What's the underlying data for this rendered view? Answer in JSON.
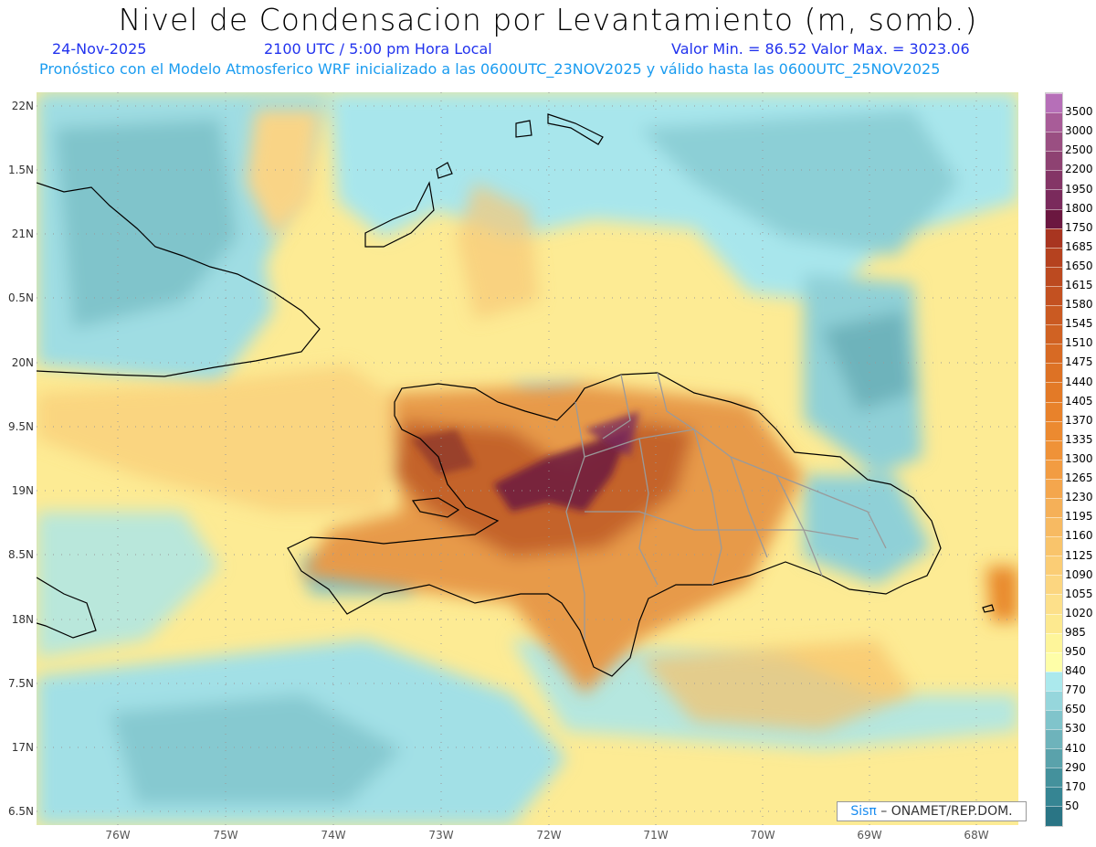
{
  "header": {
    "title": "Nivel de Condensacion por Levantamiento (m, somb.)",
    "date": "24-Nov-2025",
    "time": "2100 UTC / 5:00 pm Hora Local",
    "minmax": "Valor Min. = 86.52  Valor Max. = 3023.06",
    "forecast": "Pronóstico con el Modelo Atmosferico WRF inicializado a las 0600UTC_23NOV2025 y válido hasta las  0600UTC_25NOV2025"
  },
  "axes": {
    "lat_labels": [
      "22N",
      "1.5N",
      "21N",
      "0.5N",
      "20N",
      "9.5N",
      "19N",
      "8.5N",
      "18N",
      "7.5N",
      "17N",
      "6.5N"
    ],
    "lon_labels": [
      "76W",
      "75W",
      "74W",
      "73W",
      "72W",
      "71W",
      "70W",
      "69W",
      "68W"
    ]
  },
  "colorbar": {
    "labels": [
      "50",
      "170",
      "290",
      "410",
      "530",
      "650",
      "770",
      "840",
      "950",
      "985",
      "1020",
      "1055",
      "1090",
      "1125",
      "1160",
      "1195",
      "1230",
      "1265",
      "1300",
      "1335",
      "1370",
      "1405",
      "1440",
      "1475",
      "1510",
      "1545",
      "1580",
      "1615",
      "1650",
      "1685",
      "1750",
      "1800",
      "1950",
      "2200",
      "2500",
      "3000",
      "3500"
    ],
    "colors": [
      "#2a7585",
      "#368593",
      "#44919c",
      "#5aa2ab",
      "#6eb3bb",
      "#80c4cb",
      "#96d6dc",
      "#abe9ed",
      "#fefea8",
      "#fef59a",
      "#fde98f",
      "#fde08a",
      "#fcd680",
      "#fbcd75",
      "#f9c46b",
      "#f7ba62",
      "#f5b058",
      "#f4a64d",
      "#f29c42",
      "#ef9238",
      "#ec8a30",
      "#e8822b",
      "#e37a27",
      "#dd7225",
      "#d76a24",
      "#d06223",
      "#ca5a22",
      "#c35121",
      "#bc4a20",
      "#b5421f",
      "#a83520",
      "#6b1740",
      "#7a2a5c",
      "#843566",
      "#8e4272",
      "#9a4f82",
      "#a85c98",
      "#b66fb8"
    ]
  },
  "credit": {
    "logo": "Sisπ",
    "text": " – ONAMET/REP.DOM."
  }
}
